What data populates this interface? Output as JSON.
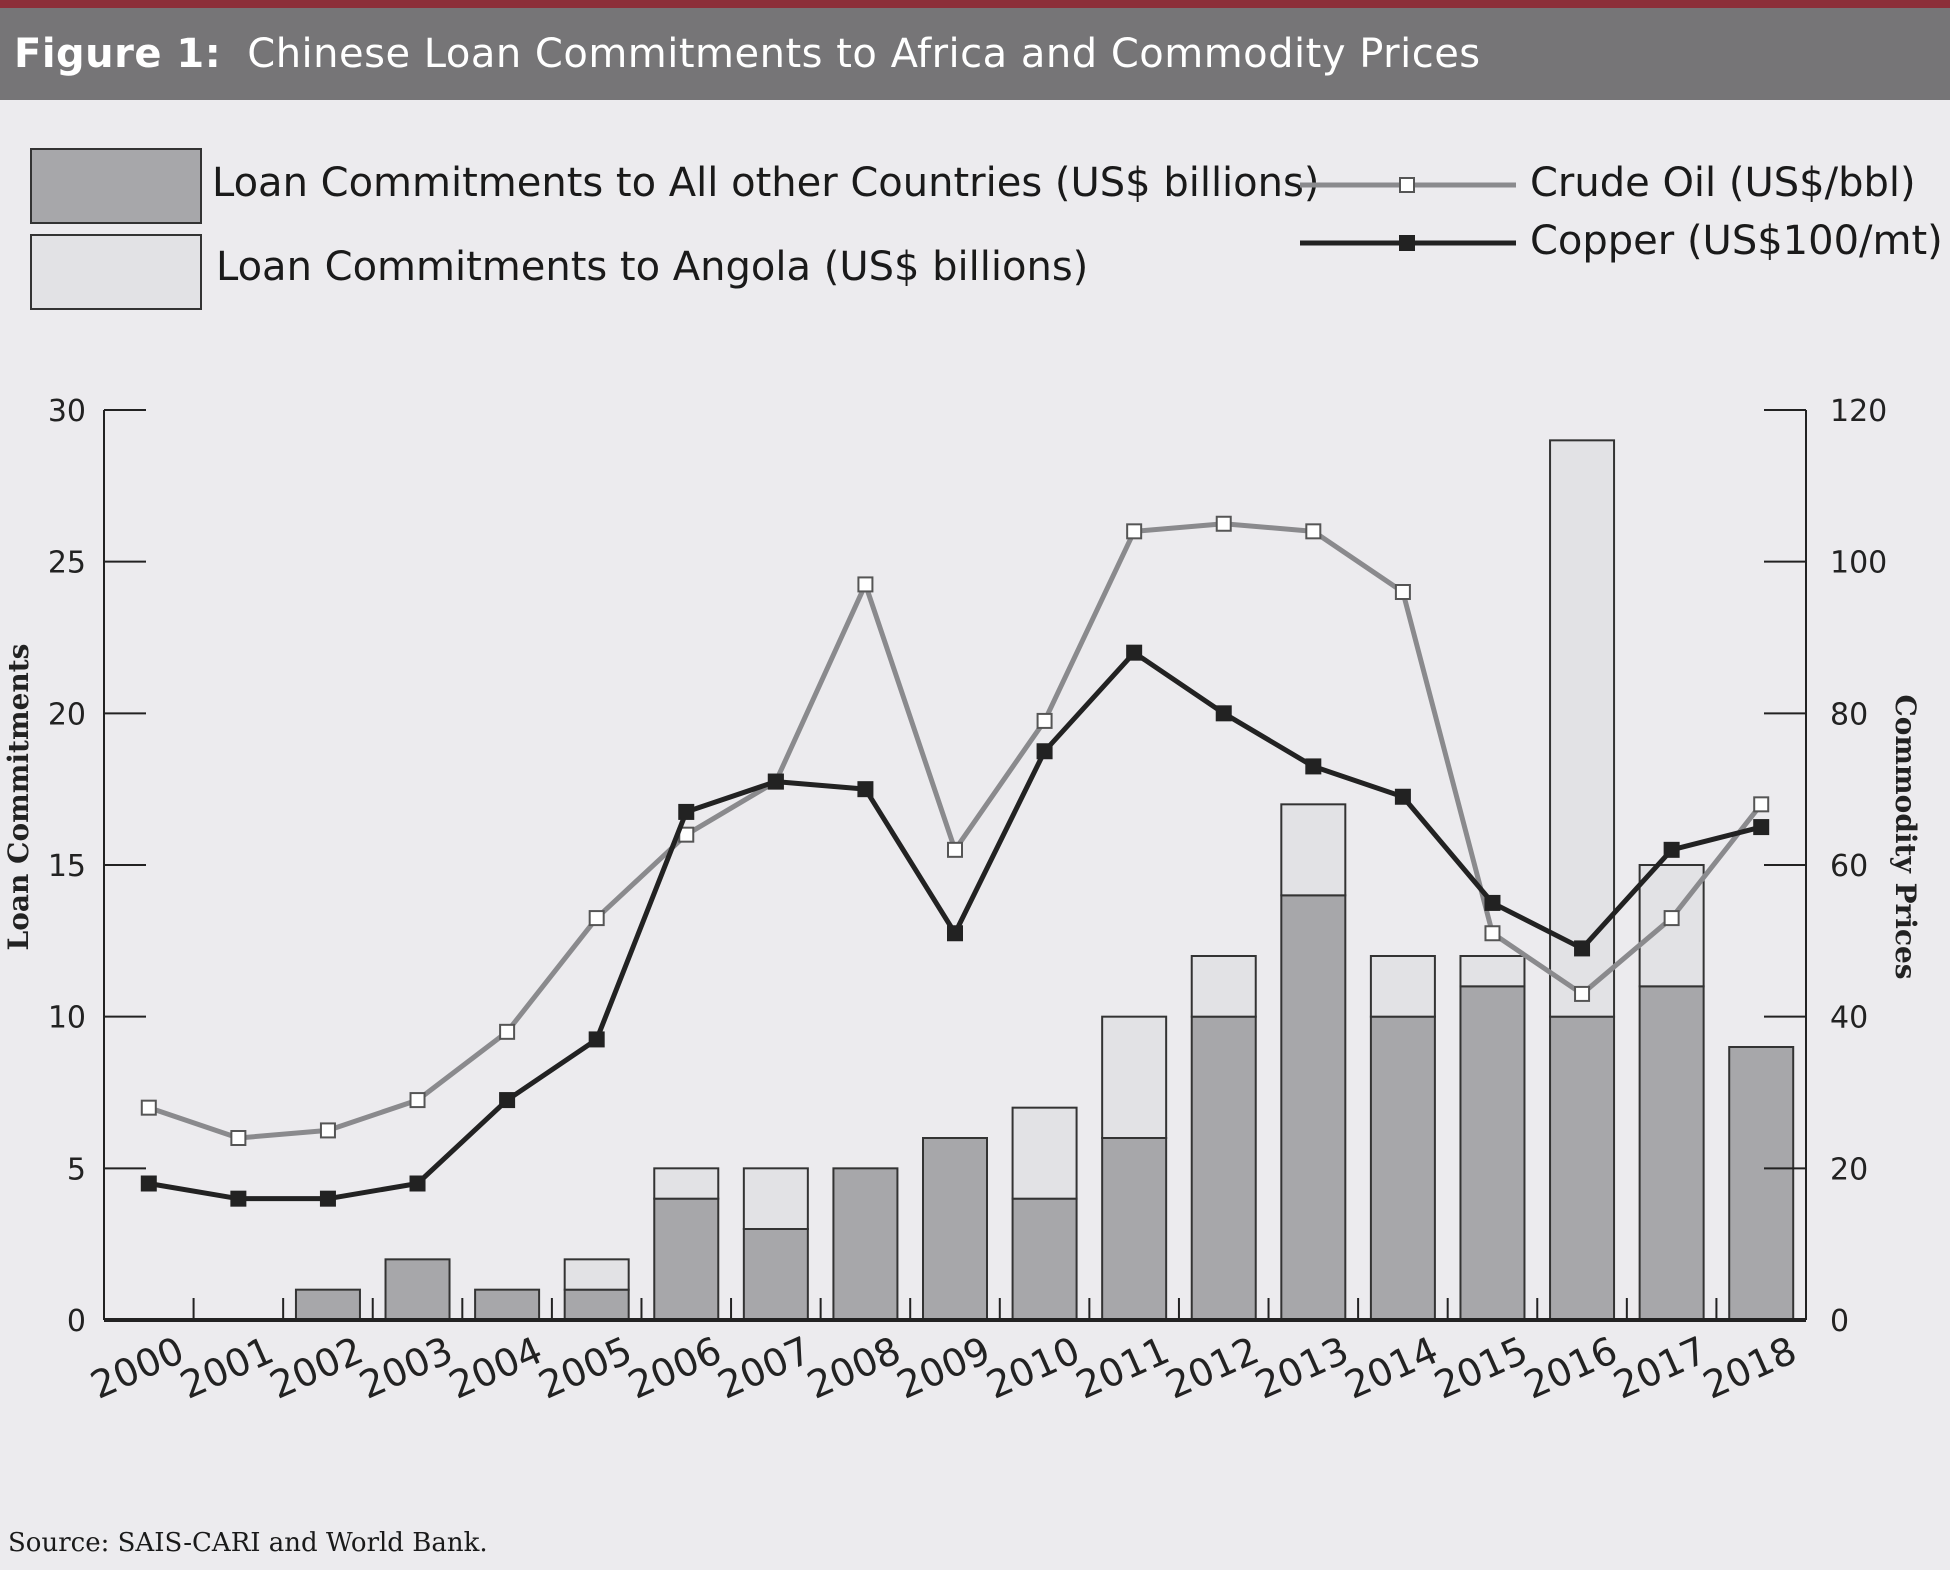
{
  "header": {
    "figure_label": "Figure 1:",
    "title": "Chinese Loan Commitments to Africa and Commodity Prices"
  },
  "legend": {
    "other": "Loan Commitments to All other Countries (US$ billions)",
    "angola": "Loan Commitments to Angola (US$ billions)",
    "oil": "Crude Oil (US$/bbl)",
    "copper": "Copper (US$100/mt)"
  },
  "colors": {
    "other": "#a7a7aa",
    "angola": "#e2e2e5",
    "oil": "#8a8a8d",
    "copper": "#222222",
    "axis": "#222222"
  },
  "chart_data": {
    "type": "bar",
    "stacked": true,
    "categories": [
      "2000",
      "2001",
      "2002",
      "2003",
      "2004",
      "2005",
      "2006",
      "2007",
      "2008",
      "2009",
      "2010",
      "2011",
      "2012",
      "2013",
      "2014",
      "2015",
      "2016",
      "2017",
      "2018"
    ],
    "series": [
      {
        "name": "Loan Commitments to All other Countries (US$ billions)",
        "axis": "left",
        "type": "bar",
        "values": [
          0,
          0,
          1,
          2,
          1,
          1,
          4,
          3,
          5,
          6,
          4,
          6,
          10,
          14,
          10,
          11,
          10,
          11,
          9
        ]
      },
      {
        "name": "Loan Commitments to Angola (US$ billions)",
        "axis": "left",
        "type": "bar",
        "values": [
          0,
          0,
          0,
          0,
          0,
          1,
          1,
          2,
          0,
          0,
          3,
          4,
          2,
          3,
          2,
          1,
          19,
          4,
          0
        ]
      },
      {
        "name": "Crude Oil (US$/bbl)",
        "axis": "right",
        "type": "line",
        "values": [
          28,
          24,
          25,
          29,
          38,
          53,
          64,
          71,
          97,
          62,
          79,
          104,
          105,
          104,
          96,
          51,
          43,
          53,
          68
        ]
      },
      {
        "name": "Copper (US$100/mt)",
        "axis": "right",
        "type": "line",
        "values": [
          18,
          16,
          16,
          18,
          29,
          37,
          67,
          71,
          70,
          51,
          75,
          88,
          80,
          73,
          69,
          55,
          49,
          62,
          65
        ]
      }
    ],
    "ylabel": "Loan Commitments",
    "y2label": "Commodity Prices",
    "ylim": [
      0,
      30
    ],
    "y2lim": [
      0,
      120
    ],
    "yticks": [
      0,
      5,
      10,
      15,
      20,
      25,
      30
    ],
    "y2ticks": [
      0,
      20,
      40,
      60,
      80,
      100,
      120
    ]
  },
  "source": "Source: SAIS-CARI and World Bank."
}
